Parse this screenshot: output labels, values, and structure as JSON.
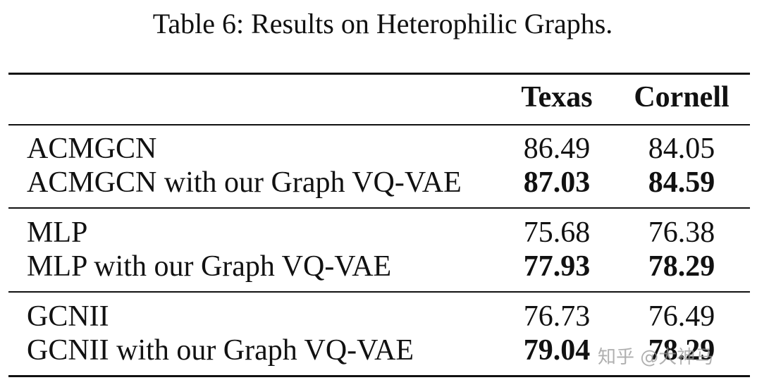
{
  "caption": "Table 6: Results on Heterophilic Graphs.",
  "columns": [
    "Texas",
    "Cornell"
  ],
  "groups": [
    {
      "rows": [
        {
          "method": "ACMGCN",
          "texas": "86.49",
          "cornell": "84.05"
        },
        {
          "method": "ACMGCN with our Graph VQ-VAE",
          "texas": "87.03",
          "cornell": "84.59"
        }
      ]
    },
    {
      "rows": [
        {
          "method": "MLP",
          "texas": "75.68",
          "cornell": "76.38"
        },
        {
          "method": "MLP with our Graph VQ-VAE",
          "texas": "77.93",
          "cornell": "78.29"
        }
      ]
    },
    {
      "rows": [
        {
          "method": "GCNII",
          "texas": "76.73",
          "cornell": "76.49"
        },
        {
          "method": "GCNII with our Graph VQ-VAE",
          "texas": "79.04",
          "cornell": "78.29"
        }
      ]
    }
  ],
  "watermark": "知乎 @大神马"
}
